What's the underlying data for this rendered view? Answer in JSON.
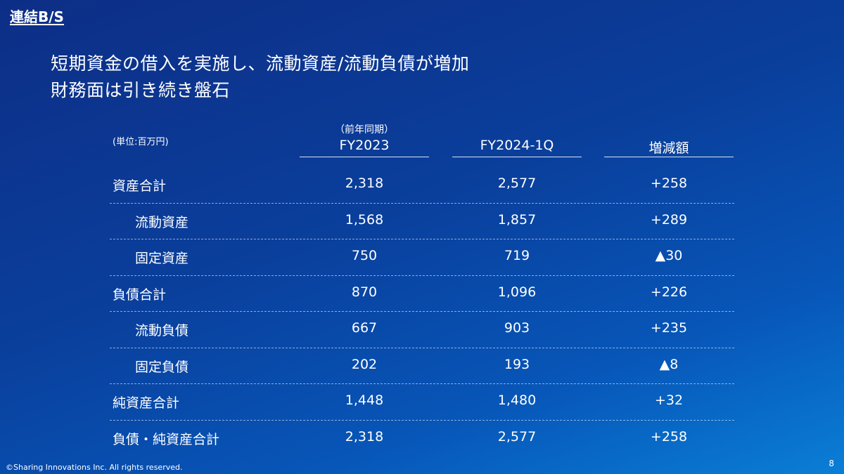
{
  "section": "連結B/S",
  "headline": {
    "line1": "短期資金の借入を実施し、流動資産/流動負債が増加",
    "line2": "財務面は引き続き盤石"
  },
  "unit_note": "(単位:百万円)",
  "columns": [
    {
      "sub": "（前年同期）",
      "label": "FY2023"
    },
    {
      "sub": "",
      "label": "FY2024-1Q"
    },
    {
      "sub": "",
      "label": "増減額"
    }
  ],
  "rows": [
    {
      "label": "資産合計",
      "indent": false,
      "values": [
        "2,318",
        "2,577",
        "+258"
      ]
    },
    {
      "label": "流動資産",
      "indent": true,
      "values": [
        "1,568",
        "1,857",
        "+289"
      ]
    },
    {
      "label": "固定資産",
      "indent": true,
      "values": [
        "750",
        "719",
        "▲30"
      ]
    },
    {
      "label": "負債合計",
      "indent": false,
      "values": [
        "870",
        "1,096",
        "+226"
      ]
    },
    {
      "label": "流動負債",
      "indent": true,
      "values": [
        "667",
        "903",
        "+235"
      ]
    },
    {
      "label": "固定負債",
      "indent": true,
      "values": [
        "202",
        "193",
        "▲8"
      ]
    },
    {
      "label": "純資産合計",
      "indent": false,
      "values": [
        "1,448",
        "1,480",
        "+32"
      ]
    },
    {
      "label": "負債・純資産合計",
      "indent": false,
      "values": [
        "2,318",
        "2,577",
        "+258"
      ]
    }
  ],
  "footer": "©Sharing Innovations Inc. All rights reserved.",
  "page_number": "8",
  "colors": {
    "background_start": "#0d2e86",
    "background_end": "#0a7ed6",
    "text": "#ffffff"
  }
}
